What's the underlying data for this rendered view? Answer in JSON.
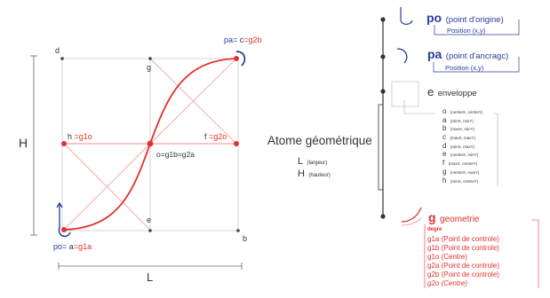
{
  "colors": {
    "blue": "#2a3c9e",
    "red": "#e2322f",
    "light_red": "#f2a5a3",
    "grid": "#d6d6d6",
    "dark": "#333333"
  },
  "left_diagram": {
    "height_label": "H",
    "width_label": "L",
    "points": {
      "d": "d",
      "g": "g",
      "pa_prefix": "pa=",
      "pa_c": "c",
      "pa_ref": "=g2b",
      "h_prefix": "h",
      "h_ref": "=g1o",
      "f_prefix": "f",
      "f_ref": "=g2o",
      "center": "o=g1b=g2a",
      "e": "e",
      "b": "b",
      "po_prefix": "po=",
      "po_a": "a",
      "po_ref": "=g1a"
    }
  },
  "middle": {
    "title": "Atome géométrique",
    "l_symbol": "L",
    "l_desc": "(largeur)",
    "h_symbol": "H",
    "h_desc": "(hauteur)"
  },
  "tree": {
    "po": {
      "symbol": "po",
      "desc": "(point d'origine)",
      "sub": "Position (x,y)"
    },
    "pa": {
      "symbol": "pa",
      "desc": "(point d'ancragc)",
      "sub": "Position (x,y)"
    },
    "envelope": {
      "symbol": "e",
      "label": "enveloppe",
      "items": [
        {
          "letter": "o",
          "detail": "(centreX, centreY)"
        },
        {
          "letter": "a",
          "detail": "(minX, minY)"
        },
        {
          "letter": "b",
          "detail": "(maxX, minY)"
        },
        {
          "letter": "c",
          "detail": "(maxX, maxY)"
        },
        {
          "letter": "d",
          "detail": "(minX, maxY)"
        },
        {
          "letter": "e",
          "detail": "(centreX, minY)"
        },
        {
          "letter": "f",
          "detail": "(maxX, centreY)"
        },
        {
          "letter": "g",
          "detail": "(centreX, maxY)"
        },
        {
          "letter": "h",
          "detail": "(minX, centreY)"
        }
      ]
    },
    "geometry": {
      "symbol": "g",
      "label": "geometrie",
      "items": [
        "degre",
        "g1a (Point de controle)",
        "g1b (Point de controle)",
        "g1o (Centre)",
        "g2a (Point de controle)",
        "g2b (Point de controle)",
        "g2o (Centre)"
      ]
    }
  }
}
